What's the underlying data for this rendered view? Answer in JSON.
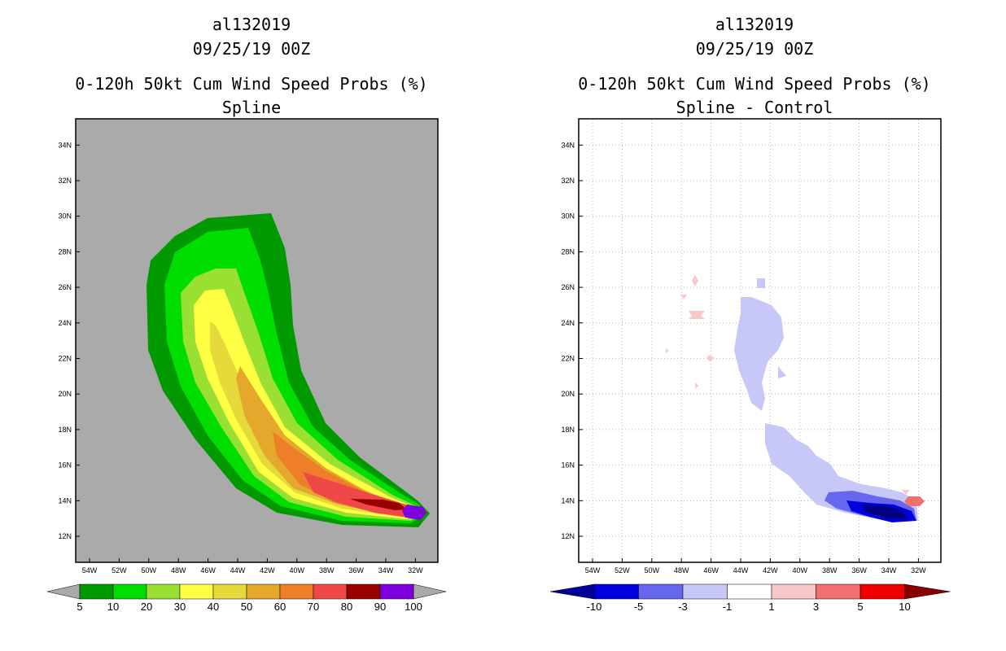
{
  "left": {
    "title1": "al132019",
    "title2": "09/25/19 00Z",
    "title3": "0-120h 50kt Cum Wind Speed Probs (%)",
    "title4": "Spline",
    "colorbar": {
      "colors": [
        "#009900",
        "#00dd00",
        "#99e033",
        "#ffff44",
        "#e6d93a",
        "#e5a82d",
        "#ee7e28",
        "#f04848",
        "#990000",
        "#8000dd"
      ],
      "labels": [
        "5",
        "10",
        "20",
        "30",
        "40",
        "50",
        "60",
        "70",
        "80",
        "90",
        "100"
      ]
    }
  },
  "right": {
    "title1": "al132019",
    "title2": "09/25/19 00Z",
    "title3": "0-120h 50kt Cum Wind Speed Probs (%)",
    "title4": "Spline - Control",
    "colorbar": {
      "colors": [
        "#0000dd",
        "#6666ee",
        "#c8c8f8",
        "#ffffff",
        "#f8c8c8",
        "#f07070",
        "#ee0000"
      ],
      "left_tip": "#000099",
      "right_tip": "#880000",
      "labels": [
        "-10",
        "-5",
        "-3",
        "-1",
        "1",
        "3",
        "5",
        "10"
      ]
    }
  },
  "lon_labels": [
    "54W",
    "52W",
    "50W",
    "48W",
    "46W",
    "44W",
    "42W",
    "40W",
    "38W",
    "36W",
    "34W",
    "32W"
  ],
  "lat_labels": [
    "12N",
    "14N",
    "16N",
    "18N",
    "20N",
    "22N",
    "24N",
    "26N",
    "28N",
    "30N",
    "32N",
    "34N"
  ],
  "colors": {
    "land_fill": "#aaaaaa",
    "grid": "#aaaaaa"
  }
}
